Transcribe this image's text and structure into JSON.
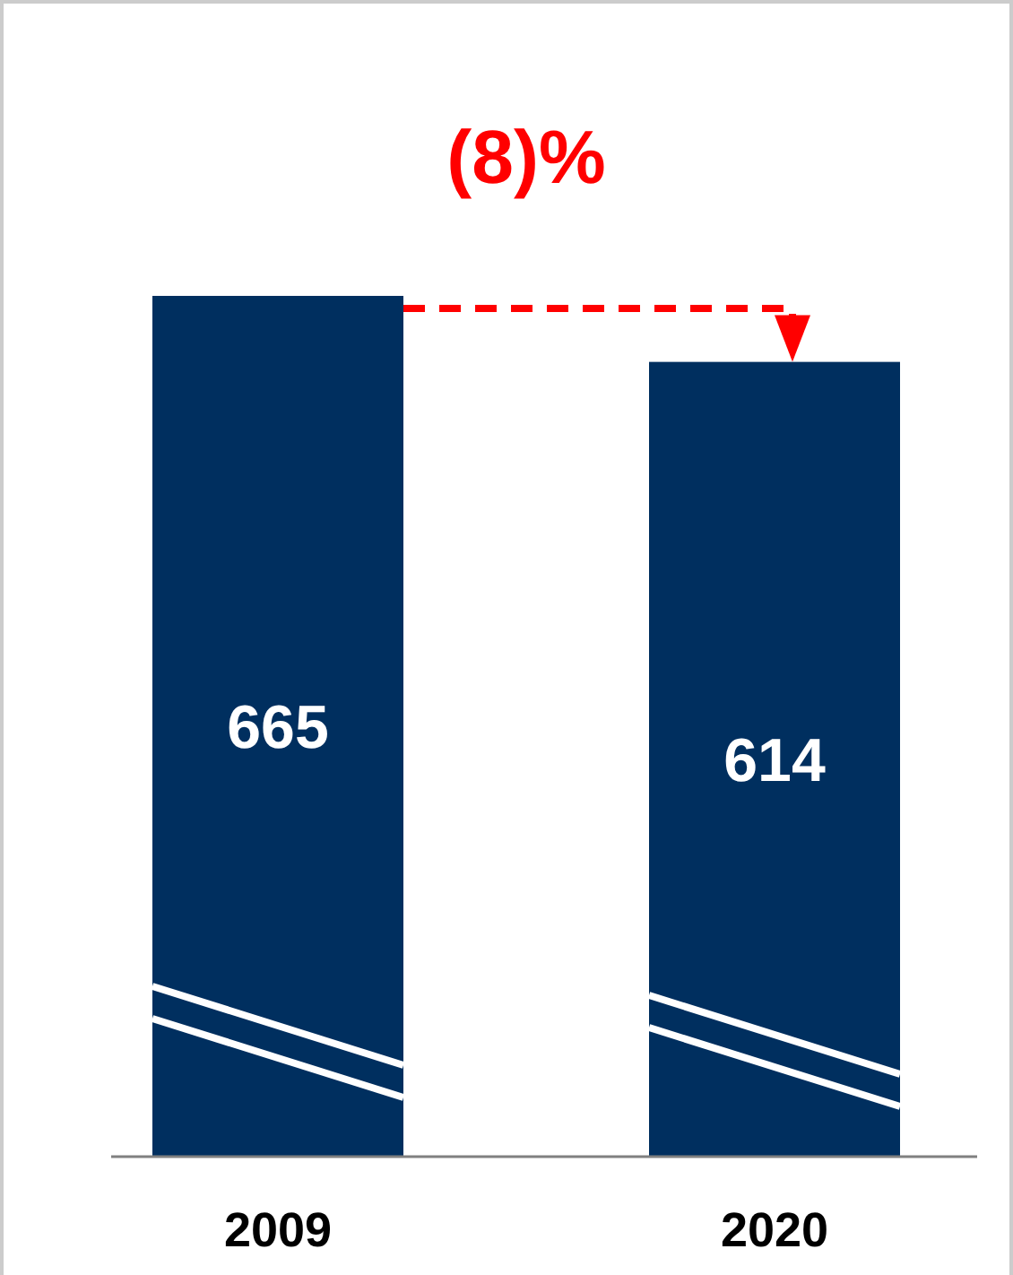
{
  "chart_data": {
    "type": "bar",
    "categories": [
      "2009",
      "2020"
    ],
    "values": [
      665,
      614
    ],
    "color": "#002f5f",
    "data_labels": true,
    "annotations": [
      "(8)%"
    ]
  }
}
